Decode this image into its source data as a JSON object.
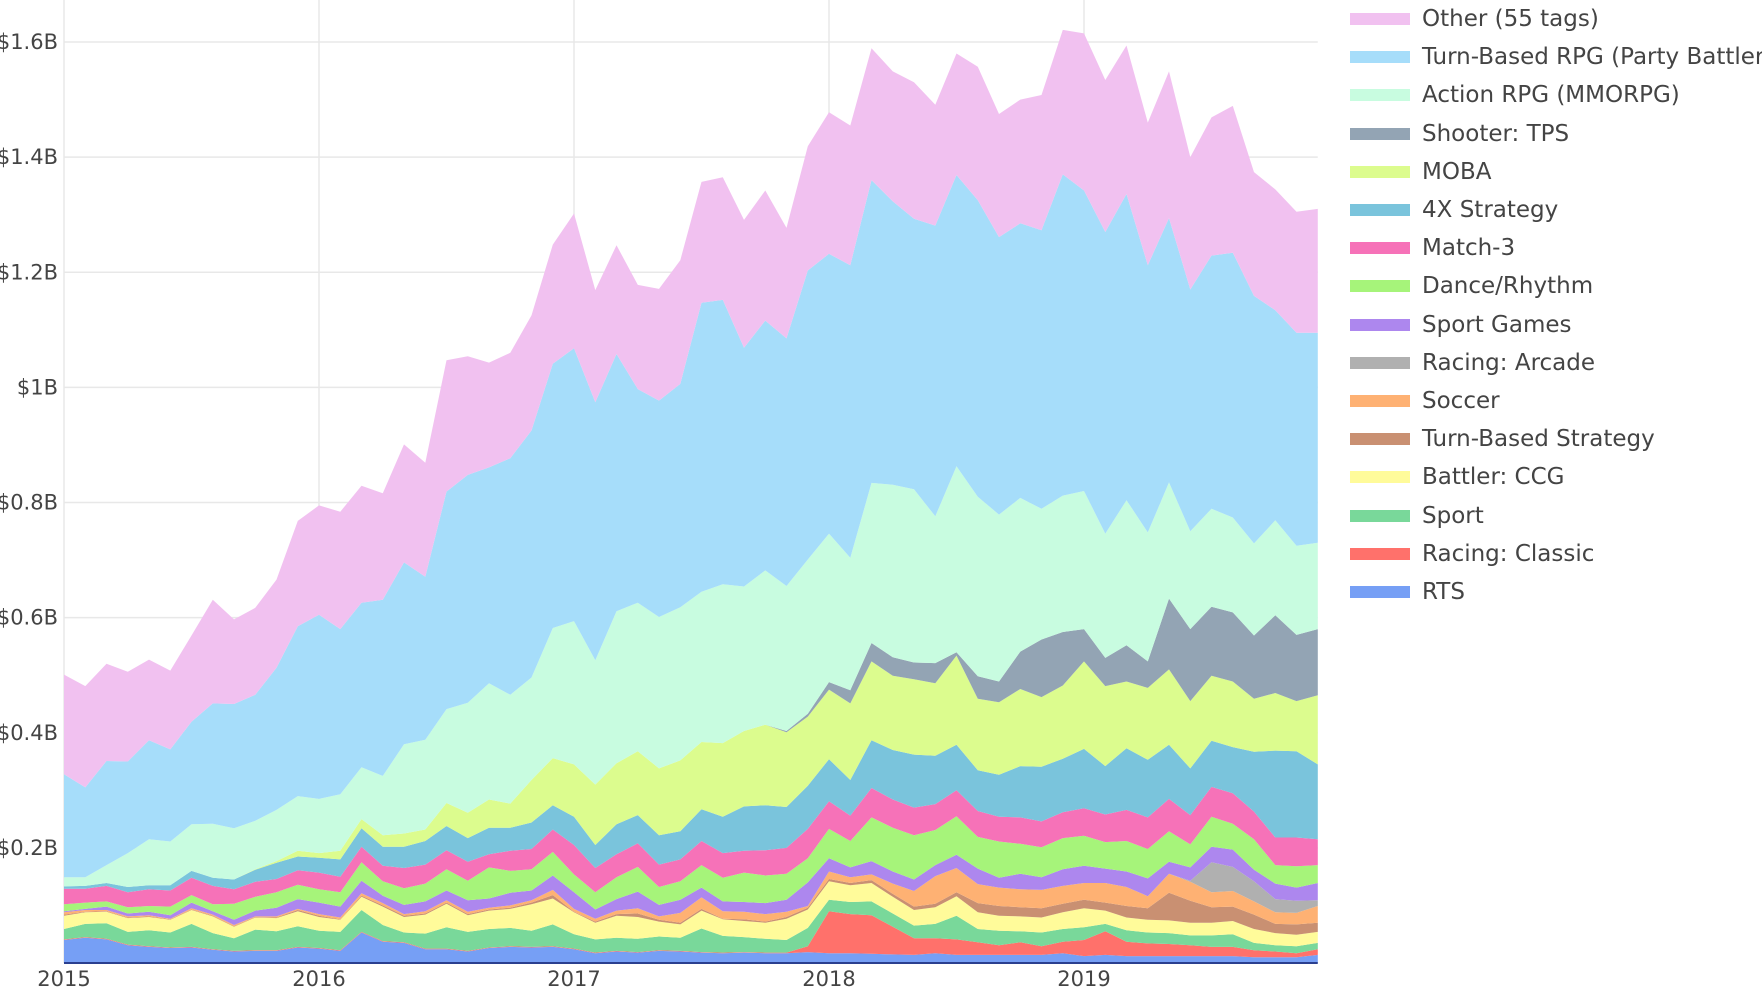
{
  "chart_data": {
    "type": "area",
    "stacked": true,
    "title": "",
    "xlabel": "",
    "ylabel": "",
    "x_start": "2015-01",
    "x_frequency": "monthly",
    "x_ticks": [
      "2015",
      "2016",
      "2017",
      "2018",
      "2019"
    ],
    "y_unit": "USD millions",
    "ylim": [
      0,
      1650
    ],
    "y_ticks": [
      200,
      400,
      600,
      800,
      1000,
      1200,
      1400,
      1600
    ],
    "y_tick_labels": [
      "$0.2B",
      "$0.4B",
      "$0.6B",
      "$0.8B",
      "$1B",
      "$1.2B",
      "$1.4B",
      "$1.6B"
    ],
    "grid": true,
    "legend_position": "right",
    "series": [
      {
        "name": "RTS",
        "color": "#769ff5",
        "values": [
          40,
          44,
          41,
          31,
          28,
          26,
          27,
          23,
          20,
          21,
          21,
          27,
          25,
          21,
          53,
          37,
          35,
          24,
          24,
          20,
          26,
          28,
          27,
          28,
          24,
          17,
          20,
          18,
          21,
          20,
          18,
          17,
          18,
          17,
          17,
          19,
          17,
          17,
          16,
          15,
          14,
          17,
          14,
          14,
          14,
          14,
          14,
          17,
          12,
          14,
          12,
          12,
          12,
          12,
          12,
          12,
          10,
          10,
          10,
          14
        ]
      },
      {
        "name": "Racing: Classic",
        "color": "#ff716b",
        "values": [
          1,
          1,
          1,
          1,
          1,
          1,
          1,
          1,
          1,
          1,
          1,
          1,
          1,
          1,
          1,
          1,
          1,
          1,
          1,
          1,
          1,
          1,
          1,
          1,
          1,
          1,
          1,
          1,
          1,
          1,
          1,
          1,
          1,
          1,
          1,
          10,
          73,
          68,
          67,
          48,
          29,
          26,
          27,
          22,
          17,
          22,
          15,
          20,
          28,
          41,
          25,
          22,
          21,
          19,
          16,
          16,
          12,
          10,
          7,
          10
        ]
      },
      {
        "name": "Sport",
        "color": "#79d89a",
        "values": [
          18,
          23,
          27,
          22,
          28,
          26,
          40,
          28,
          22,
          36,
          33,
          36,
          30,
          32,
          38,
          28,
          17,
          26,
          37,
          33,
          32,
          32,
          28,
          38,
          25,
          23,
          23,
          23,
          24,
          23,
          41,
          29,
          26,
          24,
          22,
          32,
          20,
          21,
          24,
          23,
          22,
          25,
          41,
          23,
          25,
          19,
          24,
          22,
          22,
          13,
          20,
          19,
          19,
          17,
          20,
          22,
          13,
          11,
          12,
          11
        ]
      },
      {
        "name": "Battler: CCG",
        "color": "#fffb9a",
        "values": [
          23,
          20,
          20,
          24,
          23,
          22,
          24,
          29,
          20,
          21,
          23,
          26,
          24,
          21,
          23,
          32,
          27,
          33,
          41,
          29,
          32,
          33,
          46,
          45,
          38,
          29,
          38,
          38,
          26,
          23,
          31,
          29,
          28,
          28,
          37,
          32,
          32,
          29,
          32,
          29,
          27,
          29,
          34,
          29,
          26,
          26,
          26,
          29,
          33,
          23,
          22,
          22,
          22,
          22,
          22,
          23,
          24,
          21,
          20,
          19
        ]
      },
      {
        "name": "Turn-Based Strategy",
        "color": "#c99072",
        "values": [
          2,
          1,
          1,
          1,
          1,
          1,
          1,
          1,
          1,
          1,
          1,
          2,
          2,
          1,
          2,
          2,
          2,
          2,
          2,
          2,
          2,
          2,
          3,
          6,
          1,
          2,
          3,
          6,
          3,
          3,
          3,
          1,
          3,
          2,
          3,
          3,
          4,
          4,
          5,
          5,
          6,
          6,
          7,
          16,
          17,
          16,
          16,
          15,
          15,
          14,
          20,
          20,
          48,
          38,
          27,
          25,
          25,
          16,
          18,
          16
        ]
      },
      {
        "name": "Soccer",
        "color": "#feb173",
        "values": [
          4,
          3,
          2,
          2,
          2,
          1,
          2,
          2,
          2,
          1,
          2,
          2,
          3,
          3,
          4,
          4,
          3,
          4,
          4,
          4,
          3,
          4,
          4,
          9,
          5,
          5,
          6,
          9,
          6,
          17,
          20,
          13,
          13,
          13,
          9,
          3,
          13,
          10,
          10,
          18,
          27,
          48,
          42,
          33,
          32,
          31,
          32,
          31,
          29,
          34,
          33,
          21,
          33,
          33,
          26,
          27,
          23,
          20,
          20,
          29
        ]
      },
      {
        "name": "Racing: Arcade",
        "color": "#b0b0b0",
        "values": [
          0,
          0,
          0,
          0,
          0,
          0,
          0,
          0,
          0,
          0,
          0,
          0,
          0,
          0,
          0,
          0,
          0,
          0,
          0,
          0,
          0,
          0,
          0,
          0,
          0,
          0,
          0,
          0,
          0,
          0,
          0,
          0,
          0,
          0,
          0,
          0,
          0,
          0,
          0,
          0,
          0,
          0,
          0,
          0,
          0,
          0,
          0,
          0,
          0,
          0,
          0,
          0,
          0,
          2,
          52,
          42,
          35,
          23,
          21,
          10
        ]
      },
      {
        "name": "Sport Games",
        "color": "#ad87ee",
        "values": [
          2,
          2,
          6,
          5,
          6,
          6,
          10,
          6,
          9,
          10,
          15,
          17,
          20,
          19,
          22,
          13,
          16,
          17,
          17,
          20,
          16,
          22,
          17,
          25,
          29,
          16,
          20,
          29,
          20,
          23,
          17,
          17,
          17,
          19,
          21,
          41,
          23,
          17,
          23,
          21,
          20,
          19,
          23,
          27,
          17,
          27,
          22,
          29,
          30,
          25,
          27,
          31,
          21,
          23,
          27,
          30,
          20,
          27,
          23,
          30
        ]
      },
      {
        "name": "Dance/Rhythm",
        "color": "#a6f47a",
        "values": [
          12,
          11,
          9,
          11,
          10,
          15,
          13,
          12,
          28,
          24,
          27,
          25,
          23,
          25,
          32,
          25,
          29,
          31,
          37,
          34,
          54,
          38,
          37,
          41,
          31,
          30,
          38,
          43,
          31,
          32,
          39,
          41,
          51,
          48,
          45,
          42,
          51,
          46,
          76,
          76,
          77,
          61,
          67,
          55,
          63,
          52,
          52,
          54,
          52,
          46,
          53,
          51,
          53,
          40,
          52,
          45,
          53,
          32,
          37,
          31
        ]
      },
      {
        "name": "Match-3",
        "color": "#f672b8",
        "values": [
          27,
          24,
          27,
          26,
          29,
          28,
          30,
          32,
          25,
          26,
          23,
          25,
          29,
          27,
          27,
          27,
          35,
          33,
          33,
          33,
          23,
          35,
          35,
          39,
          51,
          42,
          40,
          41,
          39,
          38,
          42,
          43,
          38,
          44,
          45,
          51,
          48,
          44,
          51,
          49,
          48,
          45,
          45,
          45,
          43,
          46,
          45,
          45,
          48,
          48,
          54,
          55,
          56,
          51,
          52,
          53,
          48,
          48,
          50,
          45
        ]
      },
      {
        "name": "4X Strategy",
        "color": "#7ac4dc",
        "values": [
          4,
          5,
          5,
          9,
          7,
          9,
          12,
          14,
          17,
          21,
          28,
          24,
          26,
          30,
          32,
          33,
          37,
          41,
          42,
          41,
          46,
          40,
          46,
          42,
          49,
          40,
          52,
          49,
          51,
          49,
          55,
          63,
          77,
          78,
          71,
          75,
          73,
          62,
          83,
          86,
          92,
          84,
          79,
          71,
          73,
          89,
          95,
          93,
          103,
          84,
          107,
          100,
          94,
          81,
          80,
          80,
          104,
          151,
          150,
          130
        ]
      },
      {
        "name": "MOBA",
        "color": "#dcfc8e",
        "values": [
          0,
          0,
          0,
          0,
          0,
          0,
          0,
          0,
          0,
          1,
          3,
          10,
          8,
          15,
          16,
          20,
          23,
          20,
          40,
          44,
          49,
          42,
          74,
          82,
          91,
          105,
          106,
          111,
          116,
          123,
          117,
          128,
          131,
          140,
          130,
          120,
          121,
          133,
          137,
          129,
          131,
          126,
          155,
          124,
          126,
          134,
          121,
          127,
          152,
          139,
          116,
          125,
          131,
          117,
          113,
          114,
          92,
          100,
          87,
          120
        ]
      },
      {
        "name": "Shooter: TPS",
        "color": "#93a4b4",
        "values": [
          0,
          0,
          0,
          0,
          0,
          0,
          0,
          0,
          0,
          0,
          0,
          0,
          0,
          0,
          0,
          0,
          0,
          0,
          0,
          0,
          0,
          0,
          0,
          0,
          0,
          0,
          0,
          0,
          0,
          0,
          0,
          0,
          0,
          0,
          2,
          5,
          13,
          23,
          32,
          32,
          29,
          35,
          6,
          39,
          36,
          65,
          100,
          93,
          56,
          49,
          63,
          46,
          123,
          125,
          120,
          120,
          110,
          135,
          115,
          115
        ]
      },
      {
        "name": "Action RPG (MMORPG)",
        "color": "#c8fce0",
        "values": [
          16,
          15,
          31,
          59,
          80,
          76,
          81,
          94,
          89,
          84,
          89,
          95,
          94,
          98,
          90,
          103,
          155,
          156,
          163,
          191,
          202,
          189,
          178,
          226,
          249,
          216,
          264,
          258,
          263,
          266,
          261,
          276,
          251,
          268,
          252,
          268,
          258,
          230,
          278,
          300,
          301,
          255,
          323,
          312,
          290,
          267,
          227,
          237,
          240,
          216,
          252,
          224,
          202,
          170,
          170,
          165,
          160,
          165,
          155,
          150
        ]
      },
      {
        "name": "Turn-Based RPG (Party Battler)",
        "color": "#a6ddfa",
        "values": [
          179,
          156,
          181,
          159,
          172,
          160,
          178,
          209,
          216,
          219,
          247,
          295,
          320,
          287,
          286,
          306,
          316,
          283,
          378,
          396,
          375,
          411,
          429,
          459,
          474,
          448,
          447,
          371,
          376,
          388,
          502,
          494,
          415,
          434,
          430,
          502,
          486,
          508,
          526,
          492,
          470,
          505,
          506,
          515,
          482,
          477,
          484,
          558,
          522,
          524,
          532,
          464,
          459,
          420,
          440,
          460,
          430,
          365,
          370,
          365
        ]
      },
      {
        "name": "Other (55 tags)",
        "color": "#f1c1f0",
        "values": [
          173,
          176,
          169,
          156,
          140,
          137,
          150,
          180,
          147,
          151,
          153,
          183,
          190,
          204,
          203,
          185,
          205,
          198,
          228,
          206,
          182,
          183,
          200,
          207,
          234,
          195,
          189,
          181,
          194,
          215,
          210,
          213,
          222,
          226,
          192,
          216,
          246,
          243,
          229,
          226,
          237,
          210,
          211,
          232,
          214,
          215,
          235,
          251,
          273,
          264,
          258,
          248,
          255,
          230,
          240,
          255,
          215,
          210,
          210,
          215
        ]
      }
    ]
  }
}
